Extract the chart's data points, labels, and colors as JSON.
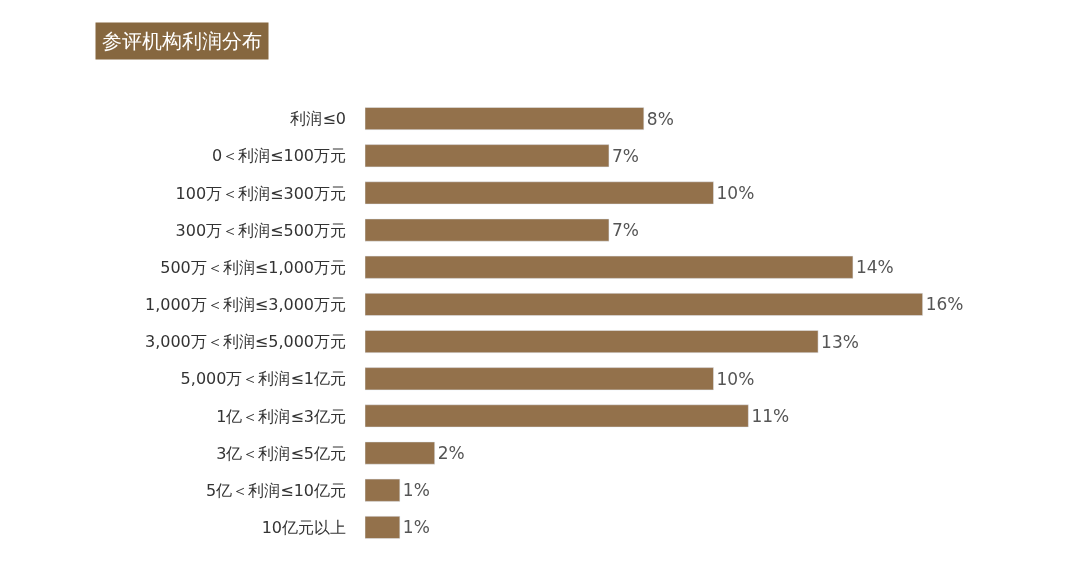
{
  "chart_data": {
    "type": "bar",
    "orientation": "horizontal",
    "title": "参评机构利润分布",
    "categories": [
      "利润≤0",
      "0＜利润≤100万元",
      "100万＜利润≤300万元",
      "300万＜利润≤500万元",
      "500万＜利润≤1,000万元",
      "1,000万＜利润≤3,000万元",
      "3,000万＜利润≤5,000万元",
      "5,000万＜利润≤1亿元",
      "1亿＜利润≤3亿元",
      "3亿＜利润≤5亿元",
      "5亿＜利润≤10亿元",
      "10亿元以上"
    ],
    "values": [
      8,
      7,
      10,
      7,
      14,
      16,
      13,
      10,
      11,
      2,
      1,
      1
    ],
    "value_labels": [
      "8%",
      "7%",
      "10%",
      "7%",
      "14%",
      "16%",
      "13%",
      "10%",
      "11%",
      "2%",
      "1%",
      "1%"
    ],
    "color": "#93714b",
    "legend": false
  }
}
